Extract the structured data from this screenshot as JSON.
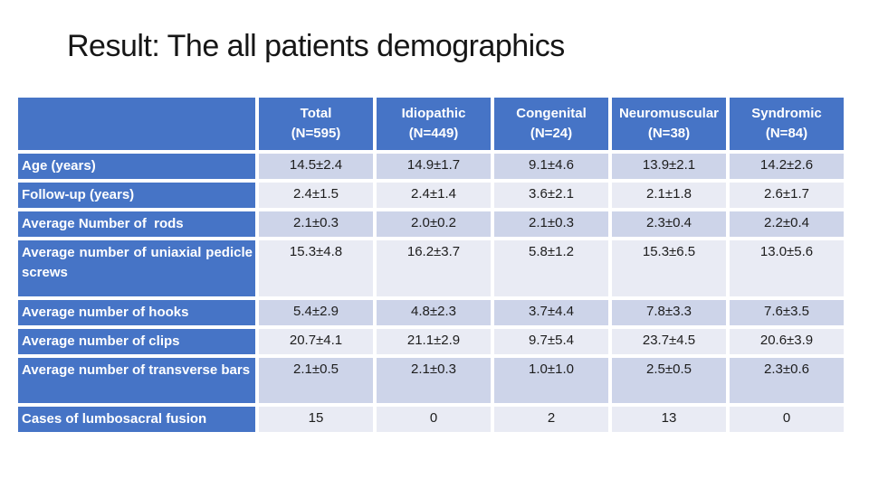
{
  "slide": {
    "title": "Result: The all patients demographics"
  },
  "table": {
    "columns": [
      {
        "label": "Total",
        "n": "(N=595)"
      },
      {
        "label": "Idiopathic",
        "n": "(N=449)"
      },
      {
        "label": "Congenital",
        "n": "(N=24)"
      },
      {
        "label": "Neuromuscular",
        "n": "(N=38)"
      },
      {
        "label": "Syndromic",
        "n": "(N=84)"
      }
    ],
    "rows": [
      {
        "label": "Age (years)",
        "values": [
          "14.5±2.4",
          "14.9±1.7",
          "9.1±4.6",
          "13.9±2.1",
          "14.2±2.6"
        ]
      },
      {
        "label": "Follow-up (years)",
        "values": [
          "2.4±1.5",
          "2.4±1.4",
          "3.6±2.1",
          "2.1±1.8",
          "2.6±1.7"
        ]
      },
      {
        "label": "Average Number of  rods",
        "values": [
          "2.1±0.3",
          "2.0±0.2",
          "2.1±0.3",
          "2.3±0.4",
          "2.2±0.4"
        ]
      },
      {
        "label": "Average number of uniaxial pedicle screws",
        "values": [
          "15.3±4.8",
          "16.2±3.7",
          "5.8±1.2",
          "15.3±6.5",
          "13.0±5.6"
        ]
      },
      {
        "label": "Average number of hooks",
        "values": [
          "5.4±2.9",
          "4.8±2.3",
          "3.7±4.4",
          "7.8±3.3",
          "7.6±3.5"
        ]
      },
      {
        "label": "Average number of clips",
        "values": [
          "20.7±4.1",
          "21.1±2.9",
          "9.7±5.4",
          "23.7±4.5",
          "20.6±3.9"
        ]
      },
      {
        "label": "Average number of transverse bars",
        "values": [
          "2.1±0.5",
          "2.1±0.3",
          "1.0±1.0",
          "2.5±0.5",
          "2.3±0.6"
        ]
      },
      {
        "label": "Cases of lumbosacral fusion",
        "values": [
          "15",
          "0",
          "2",
          "13",
          "0"
        ]
      }
    ]
  },
  "colors": {
    "header_blue": "#4674C6",
    "band_dark": "#cdd4e9",
    "band_light": "#e9ebf4",
    "title_text": "#161616",
    "cell_text": "#1d1d1d",
    "header_text": "#ffffff"
  }
}
